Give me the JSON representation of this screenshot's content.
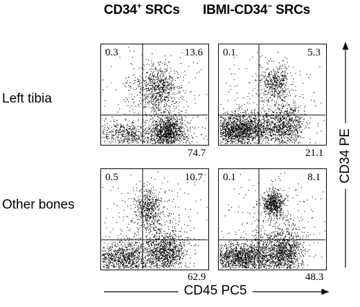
{
  "headers": {
    "col1": {
      "main": "CD34",
      "sup": "+",
      "tail": " SRCs"
    },
    "col2": {
      "main": "IBMI-CD34",
      "sup": "−",
      "tail": " SRCs"
    }
  },
  "rows": {
    "row1": "Left tibia",
    "row2": "Other bones"
  },
  "axes": {
    "x": "CD45 PC5",
    "y": "CD34 PE"
  },
  "chart_data": {
    "type": "scatter",
    "x_label": "CD45 PC5",
    "y_label": "CD34 PE",
    "panels": [
      {
        "row": "Left tibia",
        "column": "CD34+ SRCs",
        "quadrants": {
          "upper_left": 0.3,
          "upper_right": 13.6,
          "lower_right": 74.7
        }
      },
      {
        "row": "Left tibia",
        "column": "IBMI-CD34− SRCs",
        "quadrants": {
          "upper_left": 0.1,
          "upper_right": 5.3,
          "lower_right": 21.1
        }
      },
      {
        "row": "Other bones",
        "column": "CD34+ SRCs",
        "quadrants": {
          "upper_left": 0.5,
          "upper_right": 10.7,
          "lower_right": 62.9
        }
      },
      {
        "row": "Other bones",
        "column": "IBMI-CD34− SRCs",
        "quadrants": {
          "upper_left": 0.1,
          "upper_right": 8.1,
          "lower_right": 48.3
        }
      }
    ]
  },
  "panel_values": {
    "p11": {
      "ul": "0.3",
      "ur": "13.6",
      "lr": "74.7"
    },
    "p12": {
      "ul": "0.1",
      "ur": "5.3",
      "lr": "21.1"
    },
    "p21": {
      "ul": "0.5",
      "ur": "10.7",
      "lr": "62.9"
    },
    "p22": {
      "ul": "0.1",
      "ur": "8.1",
      "lr": "48.3"
    }
  },
  "colors": {
    "dots": "#000000",
    "background": "#ffffff"
  }
}
